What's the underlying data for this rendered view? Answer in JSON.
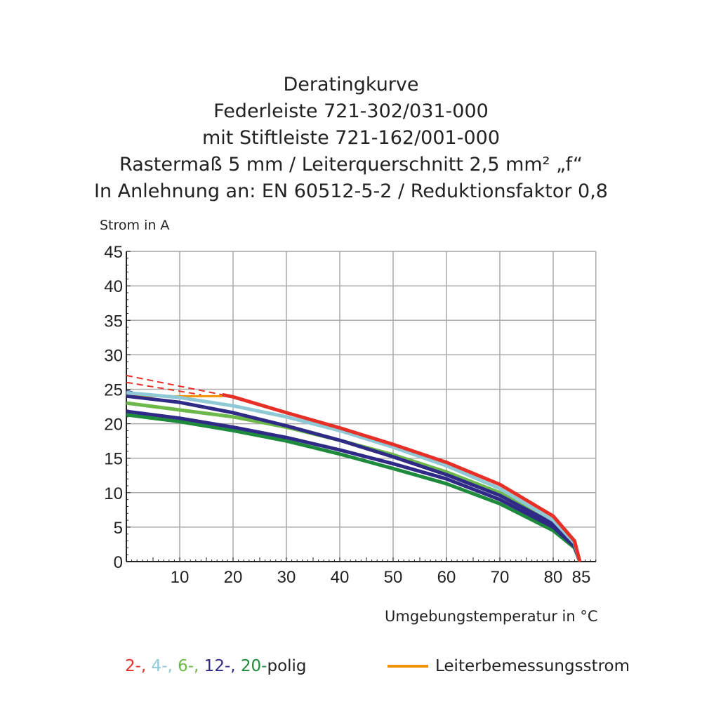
{
  "chart_data": {
    "type": "line",
    "title": [
      "Deratingkurve",
      "Federleiste 721-302/031-000",
      "mit Stiftleiste 721-162/001-000",
      "Rastermaß 5 mm / Leiterquerschnitt 2,5 mm² „f“",
      "In Anlehnung an: EN 60512-5-2 / Reduktionsfaktor 0,8"
    ],
    "ylabel": "Strom in A",
    "xlabel": "Umgebungstemperatur in  °C",
    "xlim": [
      0,
      88
    ],
    "ylim": [
      0,
      45
    ],
    "xticks": [
      10,
      20,
      30,
      40,
      50,
      60,
      70,
      80,
      85
    ],
    "yticks": [
      0,
      5,
      10,
      15,
      20,
      25,
      30,
      35,
      40,
      45
    ],
    "grid": true,
    "series": [
      {
        "name": "20-polig",
        "color": "#1e8a3c",
        "x": [
          0,
          10,
          20,
          30,
          40,
          50,
          60,
          70,
          80,
          84,
          85
        ],
        "y": [
          21.3,
          20.3,
          19,
          17.5,
          15.6,
          13.5,
          11.3,
          8.4,
          4.5,
          2,
          0
        ]
      },
      {
        "name": "12-polig",
        "color": "#2e2a86",
        "x": [
          0,
          10,
          20,
          30,
          40,
          50,
          60,
          70,
          80,
          84,
          85
        ],
        "y": [
          21.8,
          20.8,
          19.5,
          18,
          16.2,
          14.2,
          12,
          9,
          5,
          2.2,
          0
        ]
      },
      {
        "name": "6-polig",
        "color": "#6cb84a",
        "x": [
          0,
          10,
          20,
          30,
          40,
          50,
          60,
          70,
          80,
          84,
          85
        ],
        "y": [
          23,
          22,
          21,
          19.5,
          17.6,
          15.5,
          13,
          10,
          5.6,
          2.5,
          0
        ]
      },
      {
        "name": "12-polig",
        "color": "#2e2a86",
        "x": [
          0,
          10,
          20,
          30,
          40,
          50,
          60,
          70,
          80,
          84,
          85
        ],
        "y": [
          24,
          23.1,
          21.6,
          19.7,
          17.6,
          15.2,
          12.6,
          9.6,
          5.5,
          2.5,
          0
        ]
      },
      {
        "name": "4-polig",
        "color": "#8fc9d6",
        "x": [
          0,
          10,
          20,
          30,
          40,
          50,
          60,
          70,
          80,
          84,
          85
        ],
        "y": [
          24.5,
          23.8,
          22.6,
          21,
          19,
          16.6,
          13.9,
          10.6,
          6,
          2.7,
          0
        ]
      },
      {
        "name": "2-polig",
        "color": "#e63027",
        "x": [
          18,
          20,
          30,
          40,
          50,
          60,
          70,
          80,
          84,
          85
        ],
        "y": [
          24.2,
          23.9,
          21.6,
          19.4,
          17,
          14.4,
          11.2,
          6.6,
          3,
          0
        ]
      }
    ],
    "dashed_series": [
      {
        "name": "2-polig (Extrapolation)",
        "color": "#e63027",
        "x": [
          0,
          18
        ],
        "y": [
          27,
          24.2
        ]
      },
      {
        "name": "2-polig (Extrapolation)",
        "color": "#e63027",
        "x": [
          0,
          14
        ],
        "y": [
          26,
          24.2
        ]
      },
      {
        "name": "12-polig (Extrapolation)",
        "color": "#2e2a86",
        "x": [
          0,
          5
        ],
        "y": [
          24.8,
          24
        ]
      }
    ],
    "reference_line": {
      "name": "Leiterbemessungsstrom",
      "color": "#f39200",
      "x": [
        0,
        18
      ],
      "y": [
        24,
        24
      ]
    },
    "legend": {
      "series_labels": [
        {
          "text": "2-,",
          "color": "#e63027"
        },
        {
          "text": " 4-,",
          "color": "#8fc9d6"
        },
        {
          "text": " 6-,",
          "color": "#6cb84a"
        },
        {
          "text": " 12-,",
          "color": "#2e2a86"
        },
        {
          "text": " 20-",
          "color": "#1e8a3c"
        },
        {
          "text": "polig",
          "color": "#222222"
        }
      ],
      "reference_label": "Leiterbemessungsstrom",
      "placement": "bottom"
    }
  }
}
